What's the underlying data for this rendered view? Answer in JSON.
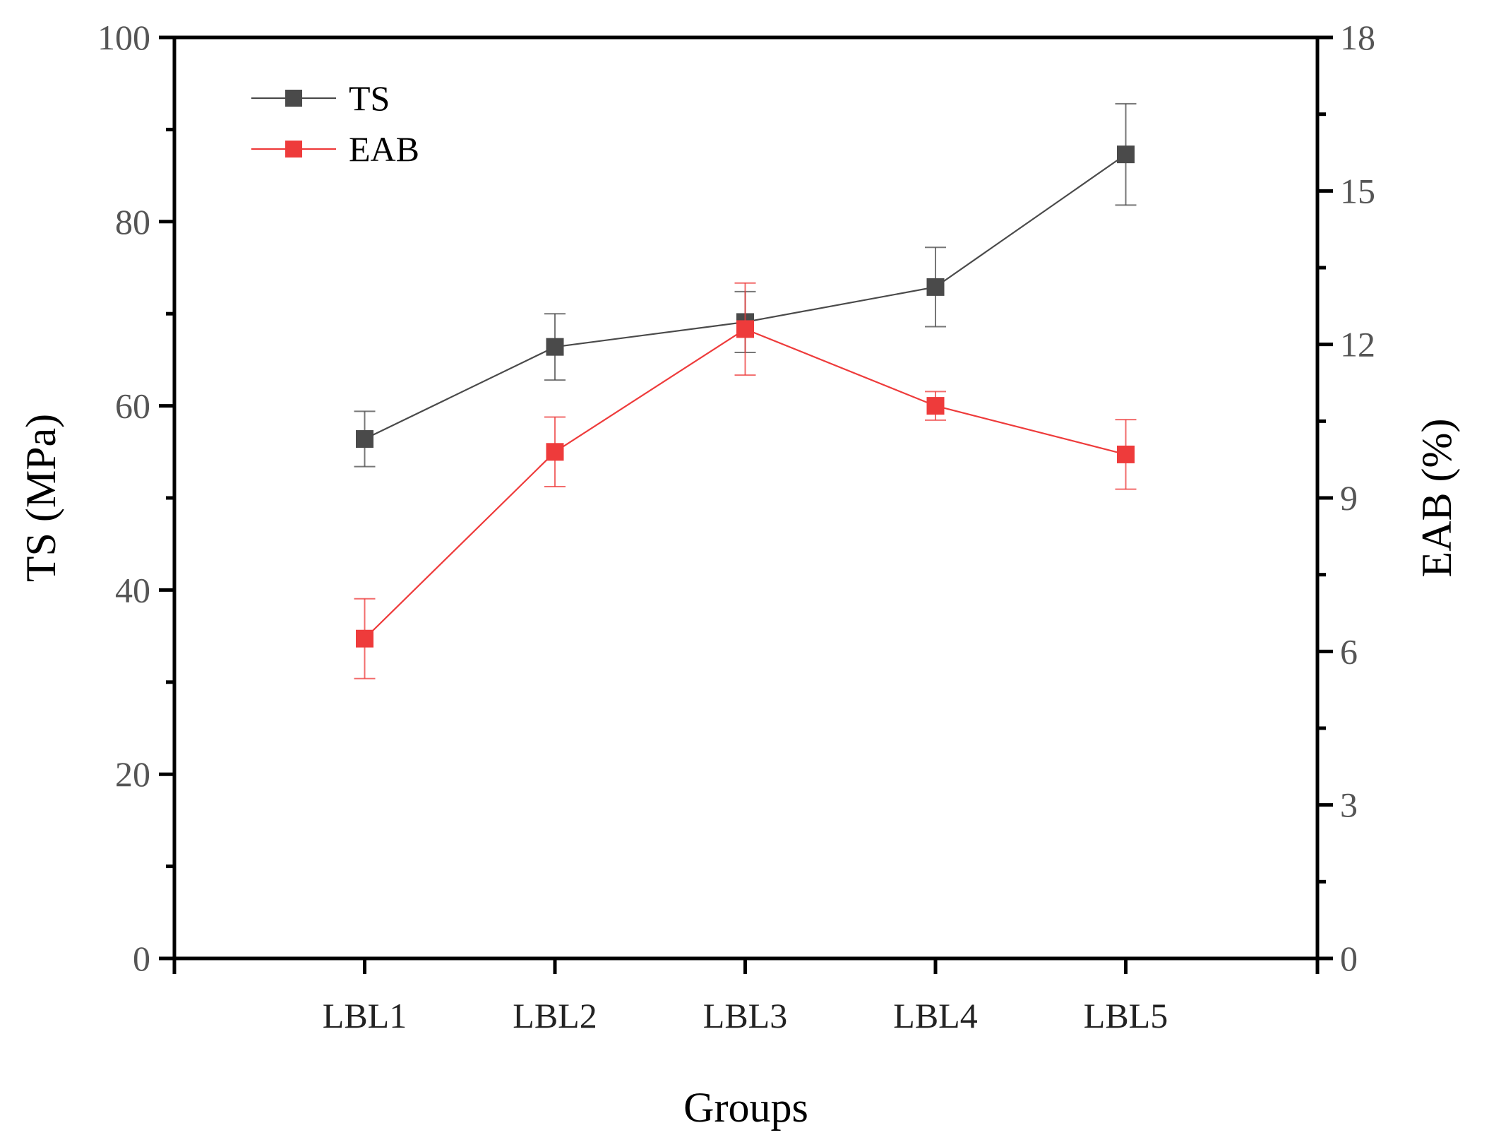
{
  "chart_data": {
    "type": "line",
    "title": "",
    "xlabel": "Groups",
    "ylabel_left": "TS (MPa)",
    "ylabel_right": "EAB (%)",
    "categories": [
      "LBL1",
      "LBL2",
      "LBL3",
      "LBL4",
      "LBL5"
    ],
    "y_left": {
      "lim": [
        0,
        100
      ],
      "ticks": [
        0,
        20,
        40,
        60,
        80,
        100
      ],
      "tick_labels": [
        "0",
        "20",
        "40",
        "60",
        "80",
        "100"
      ]
    },
    "y_right": {
      "lim": [
        0,
        18
      ],
      "ticks": [
        0,
        3,
        6,
        9,
        12,
        15,
        18
      ],
      "tick_labels": [
        "0",
        "3",
        "6",
        "9",
        "12",
        "15",
        "18"
      ]
    },
    "grid": false,
    "legend_position": "top-left",
    "series": [
      {
        "name": "TS",
        "axis": "left",
        "color": "#4a4a4a",
        "values": [
          56.4,
          66.4,
          69.1,
          72.9,
          87.3
        ],
        "errors": [
          3.0,
          3.6,
          3.3,
          4.3,
          5.5
        ]
      },
      {
        "name": "EAB",
        "axis": "right",
        "color": "#ee3b3b",
        "values": [
          6.25,
          9.9,
          12.3,
          10.8,
          9.85
        ],
        "errors": [
          0.78,
          0.68,
          0.9,
          0.28,
          0.68
        ]
      }
    ]
  }
}
